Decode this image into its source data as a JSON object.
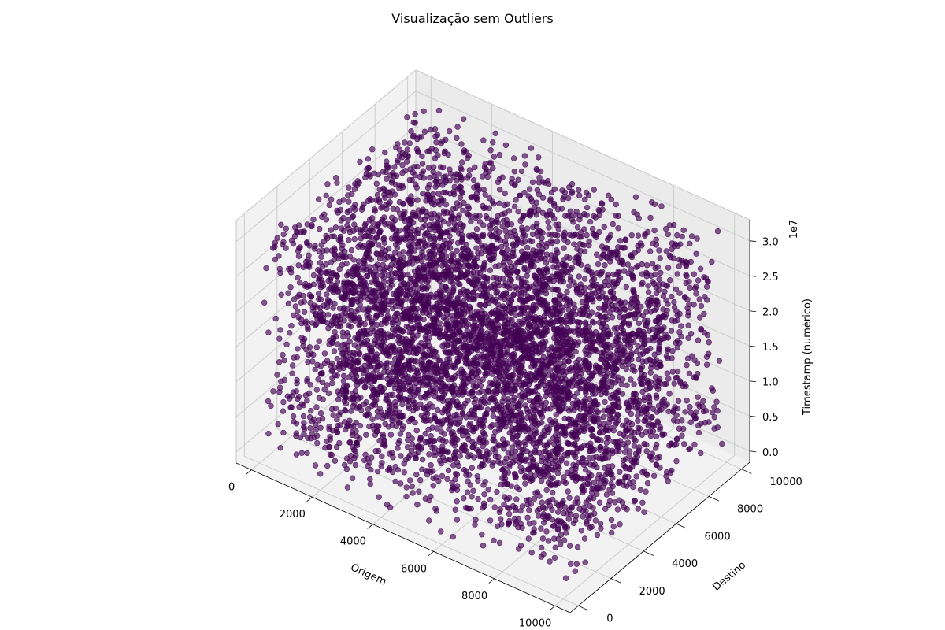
{
  "chart_data": {
    "type": "scatter",
    "projection": "3d",
    "title": "Visualização sem Outliers",
    "xlabel": "Origem",
    "ylabel": "Destino",
    "zlabel": "Timestamp (numérico)",
    "z_offset_label": "1e7",
    "x_ticks": [
      0,
      2000,
      4000,
      6000,
      8000,
      10000
    ],
    "y_ticks": [
      0,
      2000,
      4000,
      6000,
      8000,
      10000
    ],
    "z_ticks": [
      0.0,
      0.5,
      1.0,
      1.5,
      2.0,
      2.5,
      3.0
    ],
    "x_tick_labels": [
      "0",
      "2000",
      "4000",
      "6000",
      "8000",
      "10000"
    ],
    "y_tick_labels": [
      "0",
      "2000",
      "4000",
      "6000",
      "8000",
      "10000"
    ],
    "z_tick_labels": [
      "0.0",
      "0.5",
      "1.0",
      "1.5",
      "2.0",
      "2.5",
      "3.0"
    ],
    "xlim": [
      -500,
      10500
    ],
    "ylim": [
      -500,
      10500
    ],
    "zlim": [
      -0.16,
      3.3
    ],
    "z_scale": 10000000,
    "grid": true,
    "points": {
      "count": 6000,
      "x_range": [
        0,
        10000
      ],
      "y_range": [
        0,
        10000
      ],
      "z_range": [
        0.0,
        3.15
      ],
      "distribution": "uniform"
    },
    "marker_color": "#440154",
    "pane_color": "#f2f2f2",
    "grid_color": "#cccccc"
  }
}
